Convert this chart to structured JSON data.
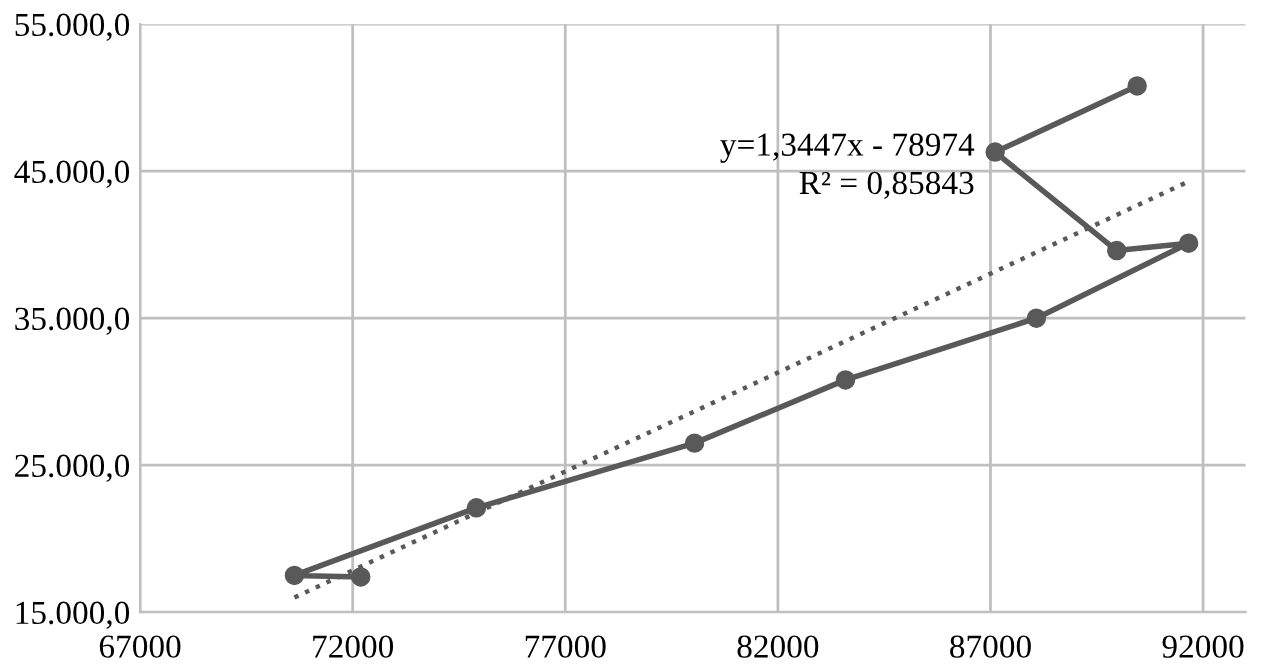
{
  "chart_data": {
    "type": "line",
    "series": [
      {
        "color": "#595959",
        "marker": "circle",
        "line_style": "solid",
        "x": [
          72190,
          70630,
          74910,
          80040,
          83590,
          88080,
          91660,
          89970,
          87110,
          90450
        ],
        "values": [
          17400,
          17500,
          22100,
          26500,
          30800,
          35000,
          40100,
          39600,
          46300,
          50800
        ]
      },
      {
        "color": "#595959",
        "marker": "none",
        "line_style": "dotted",
        "x": [
          70630,
          91660
        ],
        "values": [
          16000,
          44300
        ]
      }
    ],
    "annotations": [
      "y=1,3447x - 78974",
      "R² = 0,85843"
    ],
    "xlim": [
      67000,
      93000
    ],
    "xticks": [
      67000,
      72000,
      77000,
      82000,
      87000,
      92000
    ],
    "ylim": [
      15000,
      55000
    ],
    "yticks": [
      {
        "value": 15000,
        "label": "15.000,0"
      },
      {
        "value": 25000,
        "label": "25.000,0"
      },
      {
        "value": 35000,
        "label": "35.000,0"
      },
      {
        "value": 45000,
        "label": "45.000,0"
      },
      {
        "value": 55000,
        "label": "55.000,0"
      }
    ],
    "grid": true
  }
}
